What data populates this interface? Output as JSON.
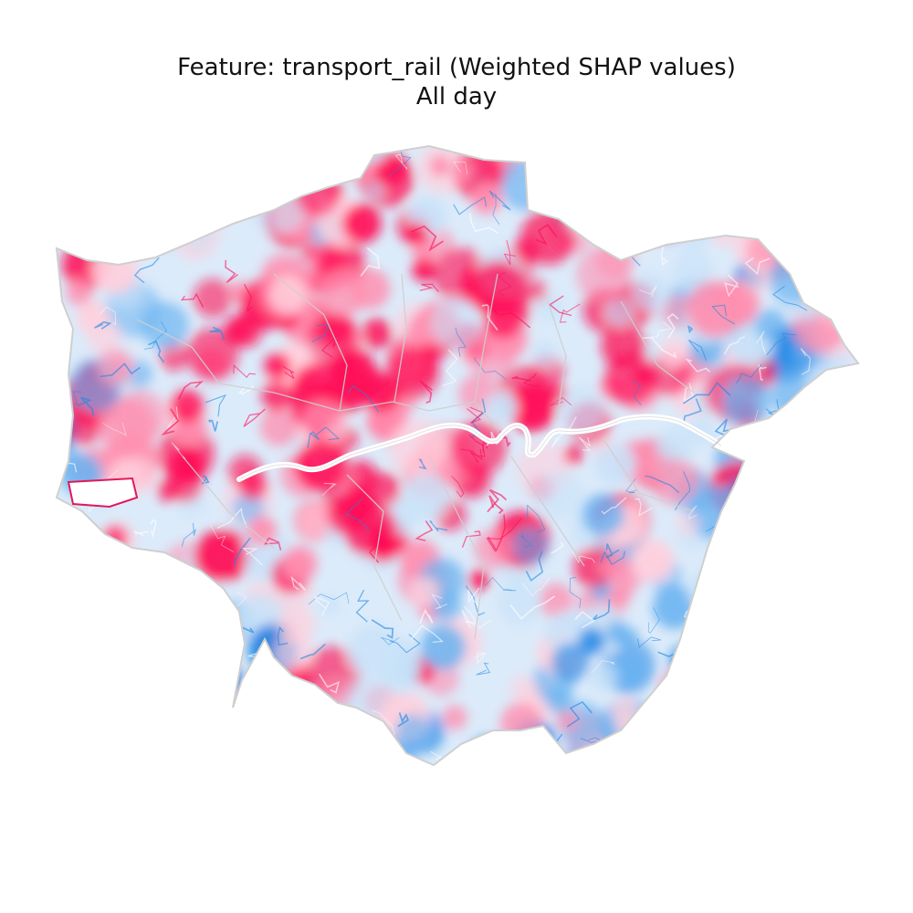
{
  "title": {
    "line1": "Feature: transport_rail (Weighted SHAP values)",
    "line2": "All day"
  },
  "map": {
    "region": "Greater London",
    "colors": {
      "strong_positive": "#ff0d57",
      "weak_positive": "#ff8fb0",
      "faint_positive": "#ffd0dd",
      "strong_negative": "#1e88e5",
      "weak_negative": "#6bb3f0",
      "faint_negative": "#c9e2f8",
      "boundary": "#cfcfcf",
      "river": "#ffffff",
      "background": "#ffffff"
    }
  }
}
